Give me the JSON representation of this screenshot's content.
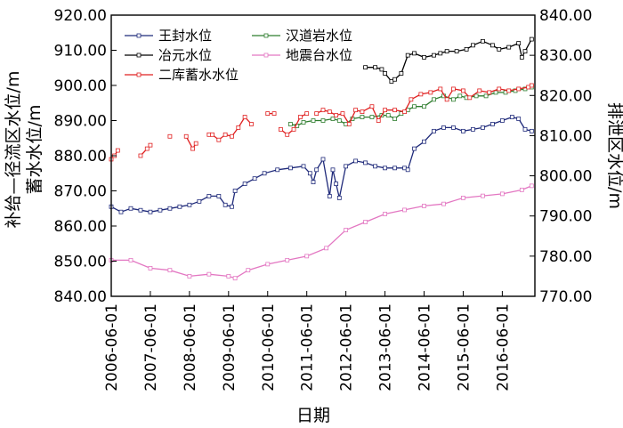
{
  "chart_data": {
    "type": "line",
    "xlabel": "日期",
    "ylabel_left": "补给—径流区水位/m\n蓄水水位/m",
    "ylabel_right": "排泄区水位/m",
    "x_tick_labels": [
      "2006-06-01",
      "2007-06-01",
      "2008-06-01",
      "2009-06-01",
      "2010-06-01",
      "2011-06-01",
      "2012-06-01",
      "2013-06-01",
      "2014-06-01",
      "2015-06-01",
      "2016-06-01"
    ],
    "x_range": [
      "2006-06-01",
      "2017-04-01"
    ],
    "ylim_left": [
      840,
      920
    ],
    "ylim_right": [
      770,
      840
    ],
    "yticks_left": [
      "840.00",
      "850.00",
      "860.00",
      "870.00",
      "880.00",
      "890.00",
      "900.00",
      "910.00",
      "920.00"
    ],
    "yticks_right": [
      "770.00",
      "780.00",
      "790.00",
      "800.00",
      "810.00",
      "820.00",
      "830.00",
      "840.00"
    ],
    "legend_placement": "top-left",
    "grid": false,
    "series": [
      {
        "name": "王封水位",
        "axis": "left",
        "color": "#1f2a7a",
        "points": [
          [
            "2006-06",
            865.5
          ],
          [
            "2006-09",
            864
          ],
          [
            "2006-12",
            865
          ],
          [
            "2007-03",
            864.5
          ],
          [
            "2007-06",
            864
          ],
          [
            "2007-09",
            864.5
          ],
          [
            "2007-12",
            865
          ],
          [
            "2008-03",
            865.5
          ],
          [
            "2008-06",
            866
          ],
          [
            "2008-09",
            867
          ],
          [
            "2008-12",
            868.5
          ],
          [
            "2009-03",
            868.5
          ],
          [
            "2009-05",
            866
          ],
          [
            "2009-07",
            865.5
          ],
          [
            "2009-08",
            870
          ],
          [
            "2009-11",
            872
          ],
          [
            "2010-02",
            873.5
          ],
          [
            "2010-05",
            875
          ],
          [
            "2010-09",
            876
          ],
          [
            "2011-01",
            876.5
          ],
          [
            "2011-05",
            877
          ],
          [
            "2011-07",
            875
          ],
          [
            "2011-08",
            872.5
          ],
          [
            "2011-09",
            876
          ],
          [
            "2011-11",
            879
          ],
          [
            "2012-01",
            868.5
          ],
          [
            "2012-02",
            876
          ],
          [
            "2012-03",
            872
          ],
          [
            "2012-04",
            868
          ],
          [
            "2012-06",
            877
          ],
          [
            "2012-09",
            878.5
          ],
          [
            "2012-12",
            878
          ],
          [
            "2013-03",
            877
          ],
          [
            "2013-06",
            876.5
          ],
          [
            "2013-09",
            876.5
          ],
          [
            "2013-12",
            876.5
          ],
          [
            "2014-01",
            876
          ],
          [
            "2014-03",
            882
          ],
          [
            "2014-06",
            884
          ],
          [
            "2014-09",
            887
          ],
          [
            "2014-12",
            888
          ],
          [
            "2015-03",
            888
          ],
          [
            "2015-06",
            887
          ],
          [
            "2015-09",
            887.5
          ],
          [
            "2015-12",
            888
          ],
          [
            "2016-03",
            889
          ],
          [
            "2016-06",
            890
          ],
          [
            "2016-09",
            891
          ],
          [
            "2016-11",
            890.5
          ],
          [
            "2017-01",
            887.5
          ],
          [
            "2017-03",
            887
          ]
        ]
      },
      {
        "name": "汉道岩水位",
        "axis": "left",
        "color": "#2e7d2e",
        "points": [
          [
            "2011-01",
            889
          ],
          [
            "2011-03",
            888.5
          ],
          [
            "2011-05",
            889.5
          ],
          [
            "2011-08",
            890
          ],
          [
            "2011-11",
            890
          ],
          [
            "2012-02",
            890.5
          ],
          [
            "2012-04",
            890
          ],
          [
            "2012-06",
            889
          ],
          [
            "2012-08",
            890.5
          ],
          [
            "2012-11",
            891
          ],
          [
            "2013-02",
            891
          ],
          [
            "2013-05",
            891.5
          ],
          [
            "2013-07",
            891.5
          ],
          [
            "2013-09",
            890.5
          ],
          [
            "2013-11",
            892
          ],
          [
            "2014-01",
            893
          ],
          [
            "2014-03",
            894
          ],
          [
            "2014-06",
            894
          ],
          [
            "2014-09",
            896
          ],
          [
            "2014-12",
            897
          ],
          [
            "2015-03",
            896
          ],
          [
            "2015-05",
            897
          ],
          [
            "2015-07",
            896.5
          ],
          [
            "2015-10",
            897
          ],
          [
            "2016-01",
            897
          ],
          [
            "2016-04",
            898
          ],
          [
            "2016-07",
            898
          ],
          [
            "2016-10",
            898.5
          ],
          [
            "2017-01",
            899
          ],
          [
            "2017-03",
            899.5
          ]
        ]
      },
      {
        "name": "冶元水位",
        "axis": "right",
        "color": "#000000",
        "points": [
          [
            "2012-12",
            827
          ],
          [
            "2013-03",
            827
          ],
          [
            "2013-05",
            826.5
          ],
          [
            "2013-06",
            825.5
          ],
          [
            "2013-08",
            823.5
          ],
          [
            "2013-09",
            824
          ],
          [
            "2013-11",
            825.5
          ],
          [
            "2014-01",
            830
          ],
          [
            "2014-03",
            830.5
          ],
          [
            "2014-06",
            829.5
          ],
          [
            "2014-09",
            830
          ],
          [
            "2014-11",
            830.5
          ],
          [
            "2015-01",
            831
          ],
          [
            "2015-04",
            831
          ],
          [
            "2015-07",
            831.5
          ],
          [
            "2015-09",
            832.5
          ],
          [
            "2015-12",
            833.5
          ],
          [
            "2016-03",
            832.5
          ],
          [
            "2016-05",
            831.5
          ],
          [
            "2016-08",
            832
          ],
          [
            "2016-11",
            833
          ],
          [
            "2016-12",
            829.5
          ],
          [
            "2017-01",
            831
          ],
          [
            "2017-03",
            834
          ]
        ]
      },
      {
        "name": "地震台水位",
        "axis": "right",
        "color": "#e377c2",
        "points": [
          [
            "2006-06",
            779
          ],
          [
            "2006-12",
            779
          ],
          [
            "2007-06",
            777
          ],
          [
            "2007-12",
            776.5
          ],
          [
            "2008-06",
            775
          ],
          [
            "2008-12",
            775.5
          ],
          [
            "2009-06",
            775
          ],
          [
            "2009-08",
            774.5
          ],
          [
            "2009-12",
            776.5
          ],
          [
            "2010-06",
            778
          ],
          [
            "2010-12",
            779
          ],
          [
            "2011-06",
            780
          ],
          [
            "2011-12",
            782
          ],
          [
            "2012-06",
            786.5
          ],
          [
            "2012-12",
            788.5
          ],
          [
            "2013-06",
            790.5
          ],
          [
            "2013-12",
            791.5
          ],
          [
            "2014-06",
            792.5
          ],
          [
            "2014-12",
            793
          ],
          [
            "2015-06",
            794.5
          ],
          [
            "2015-12",
            795
          ],
          [
            "2016-06",
            795.5
          ],
          [
            "2016-12",
            796.5
          ],
          [
            "2017-03",
            797.5
          ]
        ]
      },
      {
        "name": "二库蓄水水位",
        "axis": "left",
        "color": "#e02020",
        "segments": [
          [
            [
              "2006-06",
              879
            ],
            [
              "2006-07",
              880
            ],
            [
              "2006-08",
              881.5
            ]
          ],
          [
            [
              "2007-03",
              880
            ],
            [
              "2007-05",
              882
            ],
            [
              "2007-06",
              883
            ]
          ],
          [
            [
              "2007-12",
              885.5
            ]
          ],
          [
            [
              "2008-05",
              885.5
            ],
            [
              "2008-07",
              882
            ],
            [
              "2008-08",
              883.5
            ]
          ],
          [
            [
              "2008-12",
              886
            ],
            [
              "2009-01",
              886
            ],
            [
              "2009-03",
              884.5
            ],
            [
              "2009-05",
              886
            ],
            [
              "2009-07",
              885.5
            ],
            [
              "2009-09",
              888
            ],
            [
              "2009-11",
              891
            ],
            [
              "2010-01",
              889
            ]
          ],
          [
            [
              "2010-06",
              892
            ],
            [
              "2010-08",
              892
            ]
          ],
          [
            [
              "2010-10",
              887.5
            ],
            [
              "2010-12",
              886
            ],
            [
              "2011-02",
              887.5
            ],
            [
              "2011-04",
              891
            ],
            [
              "2011-06",
              892
            ]
          ],
          [
            [
              "2011-09",
              892
            ],
            [
              "2011-11",
              893
            ],
            [
              "2012-01",
              892.5
            ],
            [
              "2012-03",
              891.5
            ],
            [
              "2012-05",
              892
            ],
            [
              "2012-07",
              889
            ],
            [
              "2012-09",
              893
            ],
            [
              "2012-11",
              892.5
            ],
            [
              "2013-02",
              894
            ],
            [
              "2013-04",
              890
            ],
            [
              "2013-06",
              893
            ],
            [
              "2013-09",
              893
            ],
            [
              "2013-12",
              892.5
            ],
            [
              "2014-02",
              896
            ],
            [
              "2014-05",
              897.5
            ],
            [
              "2014-08",
              898
            ],
            [
              "2014-11",
              899
            ],
            [
              "2015-01",
              896
            ],
            [
              "2015-03",
              899
            ],
            [
              "2015-06",
              898.5
            ],
            [
              "2015-08",
              896.5
            ],
            [
              "2015-11",
              898.5
            ],
            [
              "2016-02",
              898
            ],
            [
              "2016-05",
              899
            ],
            [
              "2016-08",
              898.5
            ],
            [
              "2016-11",
              899
            ],
            [
              "2017-02",
              899.5
            ],
            [
              "2017-03",
              900
            ]
          ]
        ]
      }
    ]
  }
}
